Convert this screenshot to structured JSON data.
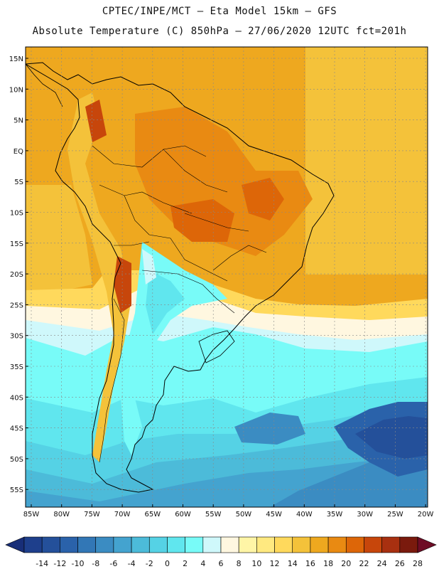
{
  "title_line1": "CPTEC/INPE/MCT –  Eta Model 15km – GFS",
  "title_line2": "Absolute Temperature (C) 850hPa – 27/06/2020 12UTC fct=201h",
  "lat_labels": [
    "15N",
    "10N",
    "5N",
    "EQ",
    "5S",
    "10S",
    "15S",
    "20S",
    "25S",
    "30S",
    "35S",
    "40S",
    "45S",
    "50S",
    "55S"
  ],
  "lon_labels": [
    "85W",
    "80W",
    "75W",
    "70W",
    "65W",
    "60W",
    "55W",
    "50W",
    "45W",
    "40W",
    "35W",
    "30W",
    "25W",
    "20W"
  ],
  "colorbar": {
    "labels": [
      "-14",
      "-12",
      "-10",
      "-8",
      "-6",
      "-4",
      "-2",
      "0",
      "2",
      "4",
      "6",
      "8",
      "10",
      "12",
      "14",
      "16",
      "18",
      "20",
      "22",
      "24",
      "26",
      "28"
    ],
    "colors": [
      "#1e3f8c",
      "#24509a",
      "#2a62aa",
      "#3277b6",
      "#3b8cc2",
      "#44a3cf",
      "#4cbbd9",
      "#55d2e5",
      "#60e6ee",
      "#78fbf8",
      "#cff8fb",
      "#fff7e0",
      "#fff5a6",
      "#ffe980",
      "#ffd95c",
      "#f4c23a",
      "#eea81f",
      "#e98a12",
      "#dd6608",
      "#c7460b",
      "#a83010",
      "#7a1a0d"
    ],
    "min_color": "#182e78",
    "max_color": "#6e0c25"
  },
  "chart_data": {
    "type": "heatmap",
    "title": "Absolute Temperature (C) 850hPa – 27/06/2020 12UTC fct=201h",
    "variable": "Absolute Temperature",
    "units": "C",
    "level": "850hPa",
    "date": "27/06/2020 12UTC",
    "forecast": "fct=201h",
    "lat_range": [
      -58,
      17
    ],
    "lon_range": [
      -86,
      -20
    ],
    "color_levels": [
      -14,
      -12,
      -10,
      -8,
      -6,
      -4,
      -2,
      0,
      2,
      4,
      6,
      8,
      10,
      12,
      14,
      16,
      18,
      20,
      22,
      24,
      26,
      28
    ]
  }
}
